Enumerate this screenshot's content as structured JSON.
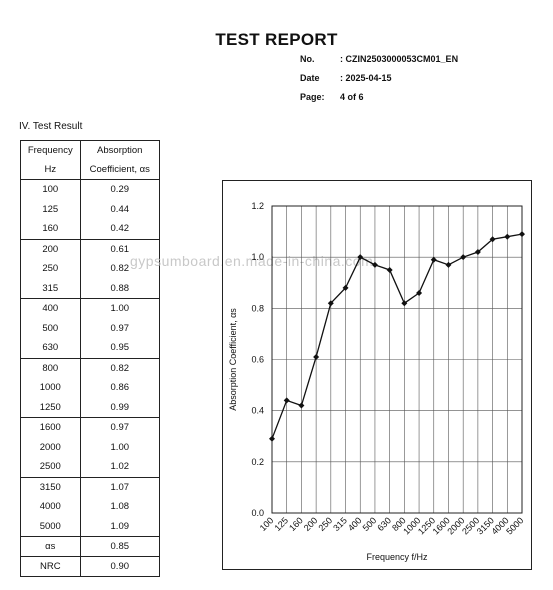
{
  "header": {
    "title": "TEST REPORT",
    "no_label": "No.",
    "no_value": ":  CZIN2503000053CM01_EN",
    "date_label": "Date",
    "date_value": ":  2025-04-15",
    "page_label": "Page:",
    "page_value": "4 of  6"
  },
  "section": {
    "title": "IV.   Test Result"
  },
  "table": {
    "col1_line1": "Frequency",
    "col1_line2": "Hz",
    "col2_line1": "Absorption",
    "col2_line2": "Coefficient, αs",
    "rows": [
      [
        "100",
        "0.29"
      ],
      [
        "125",
        "0.44"
      ],
      [
        "160",
        "0.42"
      ],
      [
        "200",
        "0.61"
      ],
      [
        "250",
        "0.82"
      ],
      [
        "315",
        "0.88"
      ],
      [
        "400",
        "1.00"
      ],
      [
        "500",
        "0.97"
      ],
      [
        "630",
        "0.95"
      ],
      [
        "800",
        "0.82"
      ],
      [
        "1000",
        "0.86"
      ],
      [
        "1250",
        "0.99"
      ],
      [
        "1600",
        "0.97"
      ],
      [
        "2000",
        "1.00"
      ],
      [
        "2500",
        "1.02"
      ],
      [
        "3150",
        "1.07"
      ],
      [
        "4000",
        "1.08"
      ],
      [
        "5000",
        "1.09"
      ]
    ],
    "summary": [
      [
        "αs",
        "0.85"
      ],
      [
        "NRC",
        "0.90"
      ]
    ]
  },
  "watermark": "gypsumboard.en.made-in-china.com",
  "chart_data": {
    "type": "line",
    "xlabel": "Frequency f/Hz",
    "ylabel": "Absorption Coefficient, αs",
    "ylim": [
      0,
      1.2
    ],
    "yticks": [
      "0.0",
      "0.2",
      "0.4",
      "0.6",
      "0.8",
      "1.0",
      "1.2"
    ],
    "grid": true,
    "categories": [
      "100",
      "125",
      "160",
      "200",
      "250",
      "315",
      "400",
      "500",
      "630",
      "800",
      "1000",
      "1250",
      "1600",
      "2000",
      "2500",
      "3150",
      "4000",
      "5000"
    ],
    "values": [
      0.29,
      0.44,
      0.42,
      0.61,
      0.82,
      0.88,
      1.0,
      0.97,
      0.95,
      0.82,
      0.86,
      0.99,
      0.97,
      1.0,
      1.02,
      1.07,
      1.08,
      1.09
    ]
  }
}
